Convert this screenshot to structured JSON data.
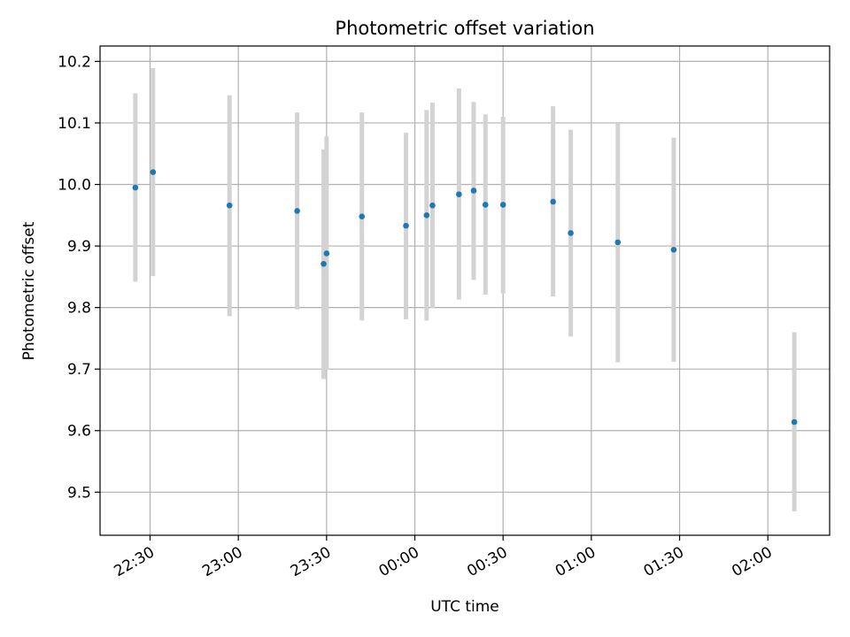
{
  "chart_data": {
    "type": "scatter",
    "title": "Photometric offset variation",
    "xlabel": "UTC time",
    "ylabel": "Photometric offset",
    "grid": true,
    "legend": "none",
    "x_axis": {
      "kind": "time",
      "range": [
        "22:13",
        "02:21"
      ],
      "ticks": [
        "22:30",
        "23:00",
        "23:30",
        "00:00",
        "00:30",
        "01:00",
        "01:30",
        "02:00"
      ]
    },
    "y_axis": {
      "range": [
        9.43,
        10.225
      ],
      "ticks": [
        "9.5",
        "9.6",
        "9.7",
        "9.8",
        "9.9",
        "10.0",
        "10.1",
        "10.2"
      ]
    },
    "colors": {
      "marker": "#1f77b4",
      "errorbar": "#d3d3d3",
      "grid": "#b0b0b0"
    },
    "points": [
      {
        "time": "22:25",
        "value": 9.995,
        "err_low": 9.842,
        "err_high": 10.148
      },
      {
        "time": "22:31",
        "value": 10.02,
        "err_low": 9.851,
        "err_high": 10.189
      },
      {
        "time": "22:57",
        "value": 9.966,
        "err_low": 9.786,
        "err_high": 10.145
      },
      {
        "time": "23:20",
        "value": 9.957,
        "err_low": 9.797,
        "err_high": 10.117
      },
      {
        "time": "23:29",
        "value": 9.871,
        "err_low": 9.684,
        "err_high": 10.057
      },
      {
        "time": "23:30",
        "value": 9.888,
        "err_low": 9.699,
        "err_high": 10.078
      },
      {
        "time": "23:42",
        "value": 9.948,
        "err_low": 9.779,
        "err_high": 10.117
      },
      {
        "time": "23:57",
        "value": 9.933,
        "err_low": 9.781,
        "err_high": 10.084
      },
      {
        "time": "00:04",
        "value": 9.95,
        "err_low": 9.779,
        "err_high": 10.121
      },
      {
        "time": "00:06",
        "value": 9.966,
        "err_low": 9.799,
        "err_high": 10.133
      },
      {
        "time": "00:15",
        "value": 9.984,
        "err_low": 9.813,
        "err_high": 10.156
      },
      {
        "time": "00:20",
        "value": 9.99,
        "err_low": 9.845,
        "err_high": 10.134
      },
      {
        "time": "00:24",
        "value": 9.967,
        "err_low": 9.821,
        "err_high": 10.114
      },
      {
        "time": "00:30",
        "value": 9.967,
        "err_low": 9.823,
        "err_high": 10.11
      },
      {
        "time": "00:47",
        "value": 9.972,
        "err_low": 9.818,
        "err_high": 10.127
      },
      {
        "time": "00:53",
        "value": 9.921,
        "err_low": 9.753,
        "err_high": 10.089
      },
      {
        "time": "01:09",
        "value": 9.906,
        "err_low": 9.711,
        "err_high": 10.1
      },
      {
        "time": "01:28",
        "value": 9.894,
        "err_low": 9.712,
        "err_high": 10.076
      },
      {
        "time": "02:09",
        "value": 9.614,
        "err_low": 9.469,
        "err_high": 9.76
      }
    ]
  }
}
